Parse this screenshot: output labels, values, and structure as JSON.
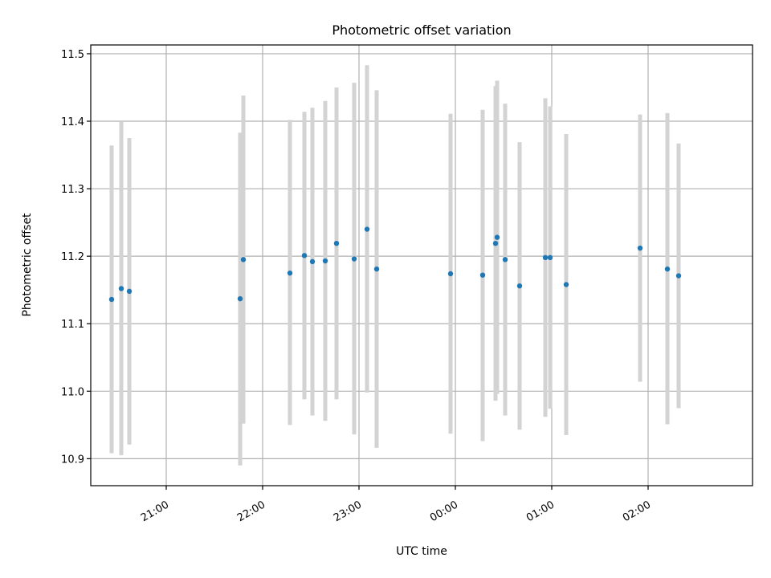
{
  "chart_data": {
    "type": "scatter",
    "title": "Photometric offset variation",
    "xlabel": "UTC time",
    "ylabel": "Photometric offset",
    "x_unit": "UTC time (HH:MM), night spanning midnight",
    "xlim": [
      "20:35",
      "03:05"
    ],
    "ylim": [
      10.86,
      11.513
    ],
    "grid": true,
    "x_ticks": [
      "21:00",
      "22:00",
      "23:00",
      "00:00",
      "01:00",
      "02:00"
    ],
    "y_ticks": [
      "10.9",
      "11.0",
      "11.1",
      "11.2",
      "11.3",
      "11.4",
      "11.5"
    ],
    "colors": {
      "point": "#1f77b4",
      "errorbar": "#d3d3d3",
      "grid": "#b0b0b0"
    },
    "points": [
      {
        "x": "20:26",
        "y": 11.136,
        "ylow": 10.908,
        "yhigh": 11.364
      },
      {
        "x": "20:32",
        "y": 11.152,
        "ylow": 10.905,
        "yhigh": 11.399
      },
      {
        "x": "20:37",
        "y": 11.148,
        "ylow": 10.921,
        "yhigh": 11.375
      },
      {
        "x": "21:46",
        "y": 11.137,
        "ylow": 10.89,
        "yhigh": 11.383
      },
      {
        "x": "21:48",
        "y": 11.195,
        "ylow": 10.952,
        "yhigh": 11.438
      },
      {
        "x": "22:17",
        "y": 11.175,
        "ylow": 10.95,
        "yhigh": 11.402
      },
      {
        "x": "22:26",
        "y": 11.201,
        "ylow": 10.988,
        "yhigh": 11.414
      },
      {
        "x": "22:31",
        "y": 11.192,
        "ylow": 10.964,
        "yhigh": 11.42
      },
      {
        "x": "22:39",
        "y": 11.193,
        "ylow": 10.956,
        "yhigh": 11.43
      },
      {
        "x": "22:46",
        "y": 11.219,
        "ylow": 10.988,
        "yhigh": 11.45
      },
      {
        "x": "22:57",
        "y": 11.196,
        "ylow": 10.936,
        "yhigh": 11.457
      },
      {
        "x": "23:05",
        "y": 11.24,
        "ylow": 10.998,
        "yhigh": 11.483
      },
      {
        "x": "23:11",
        "y": 11.181,
        "ylow": 10.916,
        "yhigh": 11.446
      },
      {
        "x": "23:57",
        "y": 11.174,
        "ylow": 10.937,
        "yhigh": 11.411
      },
      {
        "x": "00:17",
        "y": 11.172,
        "ylow": 10.926,
        "yhigh": 11.417
      },
      {
        "x": "00:25",
        "y": 11.219,
        "ylow": 10.986,
        "yhigh": 11.452
      },
      {
        "x": "00:26",
        "y": 11.228,
        "ylow": 10.996,
        "yhigh": 11.46
      },
      {
        "x": "00:31",
        "y": 11.195,
        "ylow": 10.964,
        "yhigh": 11.426
      },
      {
        "x": "00:40",
        "y": 11.156,
        "ylow": 10.943,
        "yhigh": 11.369
      },
      {
        "x": "00:56",
        "y": 11.198,
        "ylow": 10.962,
        "yhigh": 11.434
      },
      {
        "x": "00:59",
        "y": 11.198,
        "ylow": 10.974,
        "yhigh": 11.422
      },
      {
        "x": "01:09",
        "y": 11.158,
        "ylow": 10.935,
        "yhigh": 11.381
      },
      {
        "x": "01:55",
        "y": 11.212,
        "ylow": 11.014,
        "yhigh": 11.41
      },
      {
        "x": "02:12",
        "y": 11.181,
        "ylow": 10.951,
        "yhigh": 11.412
      },
      {
        "x": "02:19",
        "y": 11.171,
        "ylow": 10.975,
        "yhigh": 11.367
      }
    ]
  }
}
